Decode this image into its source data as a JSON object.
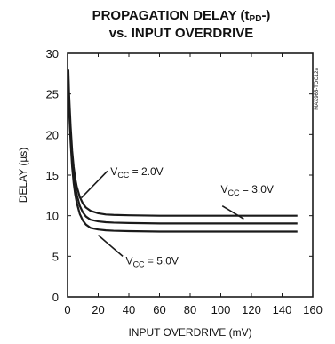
{
  "chart_data": {
    "type": "line",
    "title": "PROPAGATION DELAY (tPD-)",
    "subtitle": "vs. INPUT OVERDRIVE",
    "xlabel": "INPUT OVERDRIVE (mV)",
    "ylabel": "DELAY (µs)",
    "xlim": [
      0,
      160
    ],
    "ylim": [
      0,
      30
    ],
    "xticks": [
      0,
      20,
      40,
      60,
      80,
      100,
      120,
      140,
      160
    ],
    "yticks": [
      0,
      5,
      10,
      15,
      20,
      25,
      30
    ],
    "grid": false,
    "side_code": "MAX965-TOC12a",
    "series": [
      {
        "name": "VCC = 2.0V",
        "x": [
          0.5,
          1,
          2,
          3,
          4,
          5,
          6,
          8,
          10,
          12,
          15,
          20,
          25,
          30,
          40,
          60,
          80,
          100,
          120,
          140,
          150
        ],
        "values": [
          28.0,
          25.0,
          21.0,
          18.0,
          16.0,
          14.6,
          13.6,
          12.3,
          11.5,
          11.0,
          10.6,
          10.3,
          10.15,
          10.1,
          10.05,
          10.0,
          10.0,
          10.0,
          10.0,
          10.0,
          10.0
        ]
      },
      {
        "name": "VCC = 3.0V",
        "x": [
          0.5,
          1,
          2,
          3,
          4,
          5,
          6,
          8,
          10,
          12,
          15,
          20,
          25,
          30,
          40,
          60,
          80,
          100,
          120,
          140,
          150
        ],
        "values": [
          27.0,
          24.0,
          20.0,
          17.0,
          15.0,
          13.6,
          12.6,
          11.2,
          10.4,
          9.9,
          9.5,
          9.3,
          9.2,
          9.15,
          9.1,
          9.05,
          9.05,
          9.05,
          9.05,
          9.05,
          9.05
        ]
      },
      {
        "name": "VCC = 5.0V",
        "x": [
          0.5,
          1,
          2,
          3,
          4,
          5,
          6,
          8,
          10,
          12,
          15,
          20,
          25,
          30,
          40,
          60,
          80,
          100,
          120,
          140,
          150
        ],
        "values": [
          26.0,
          23.0,
          19.0,
          16.0,
          14.0,
          12.6,
          11.6,
          10.2,
          9.4,
          8.9,
          8.5,
          8.3,
          8.2,
          8.15,
          8.1,
          8.05,
          8.05,
          8.05,
          8.05,
          8.05,
          8.05
        ]
      }
    ],
    "annotations": [
      {
        "series": 0,
        "text": "VCC = 2.0V",
        "prefix": "V",
        "sub": "CC",
        "rest": " = 2.0V"
      },
      {
        "series": 1,
        "text": "VCC = 3.0V",
        "prefix": "V",
        "sub": "CC",
        "rest": " = 3.0V"
      },
      {
        "series": 2,
        "text": "VCC = 5.0V",
        "prefix": "V",
        "sub": "CC",
        "rest": " = 5.0V"
      }
    ],
    "colors": {
      "line": "#1a1a1a",
      "axis": "#1a1a1a",
      "background": "#ffffff"
    }
  }
}
